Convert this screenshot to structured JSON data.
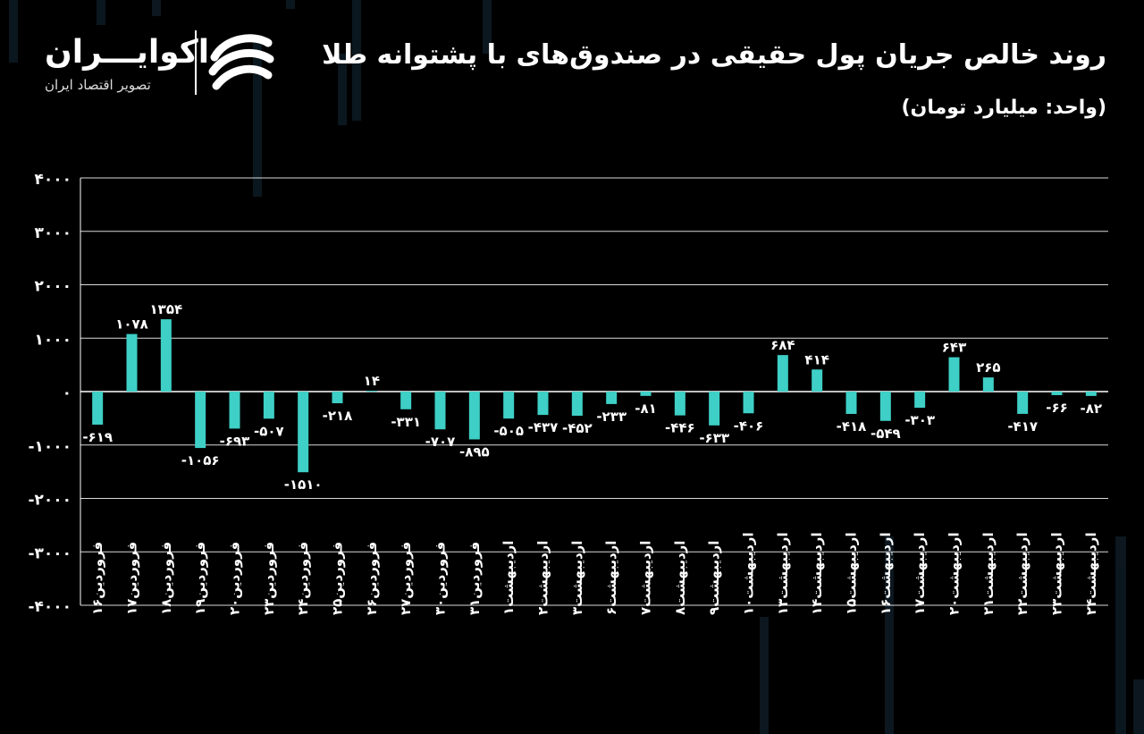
{
  "header": {
    "title": "روند خالص جریان پول حقیقی در صندوق‌های با پشتوانه طلا",
    "subtitle": "(واحد: میلیارد تومان)"
  },
  "logo": {
    "name": "اکوایـــران",
    "tagline": "تصویر اقتصاد ایران",
    "icon": "ekoiran-swoosh-icon"
  },
  "colors": {
    "bar": "#3ecfc6",
    "grid": "#ffffff",
    "background": "#000000"
  },
  "chart_data": {
    "type": "bar",
    "title": "روند خالص جریان پول حقیقی در صندوق‌های با پشتوانه طلا",
    "ylabel": "",
    "xlabel": "",
    "ylim": [
      -4000,
      4000
    ],
    "yticks": [
      4000,
      3000,
      2000,
      1000,
      0,
      -1000,
      -2000,
      -3000,
      -4000
    ],
    "ytick_labels": [
      "۴۰۰۰",
      "۳۰۰۰",
      "۲۰۰۰",
      "۱۰۰۰",
      "۰",
      "-۱۰۰۰",
      "-۲۰۰۰",
      "-۳۰۰۰",
      "-۴۰۰۰"
    ],
    "grid": true,
    "categories": [
      "فروردین۱۶",
      "فروردین۱۷",
      "فروردین۱۸",
      "فروردین۱۹",
      "فروردین۲۰",
      "فروردین۲۳",
      "فروردین۲۴",
      "فروردین۲۵",
      "فروردین۲۶",
      "فروردین۲۷",
      "فروردین۳۰",
      "فروردین۳۱",
      "اردیبهشت۱",
      "اردیبهشت۲",
      "اردیبهشت۳",
      "اردیبهشت۶",
      "اردیبهشت۷",
      "اردیبهشت۸",
      "اردیبهشت۹",
      "اردیبهشت۱۰",
      "اردیبهشت۱۳",
      "اردیبهشت۱۴",
      "اردیبهشت۱۵",
      "اردیبهشت۱۶",
      "اردیبهشت۱۷",
      "اردیبهشت۲۰",
      "اردیبهشت۲۱",
      "اردیبهشت۲۲",
      "اردیبهشت۲۳",
      "اردیبهشت۲۴"
    ],
    "values": [
      -619,
      1078,
      1354,
      -1056,
      -693,
      -507,
      -1510,
      -218,
      14,
      -331,
      -707,
      -895,
      -505,
      -437,
      -452,
      -233,
      -81,
      -446,
      -633,
      -406,
      684,
      414,
      -418,
      -549,
      -303,
      643,
      265,
      -417,
      -66,
      -82
    ],
    "value_labels": [
      "-۶۱۹",
      "۱۰۷۸",
      "۱۳۵۴",
      "-۱۰۵۶",
      "-۶۹۳",
      "-۵۰۷",
      "-۱۵۱۰",
      "-۲۱۸",
      "۱۴",
      "-۳۳۱",
      "-۷۰۷",
      "-۸۹۵",
      "-۵۰۵",
      "-۴۳۷",
      "-۴۵۲",
      "-۲۳۳",
      "-۸۱",
      "-۴۴۶",
      "-۶۳۳",
      "-۴۰۶",
      "۶۸۴",
      "۴۱۴",
      "-۴۱۸",
      "-۵۴۹",
      "-۳۰۳",
      "۶۴۳",
      "۲۶۵",
      "-۴۱۷",
      "-۶۶",
      "-۸۲"
    ]
  }
}
